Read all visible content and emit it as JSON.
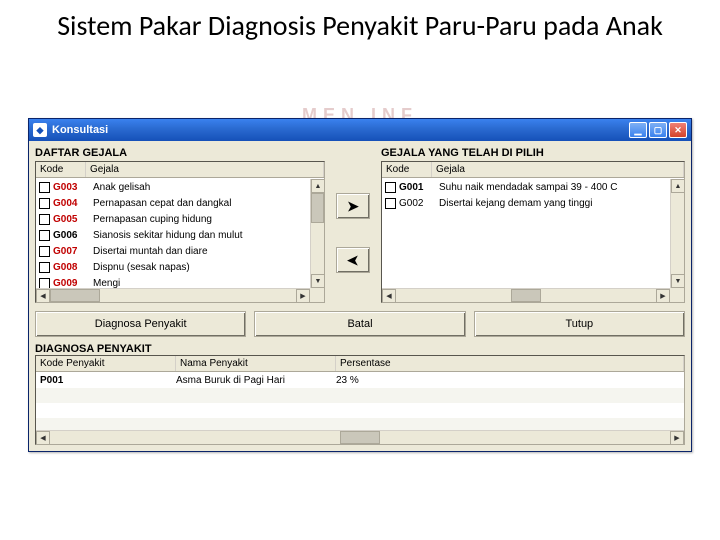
{
  "slide": {
    "title": "Sistem Pakar Diagnosis Penyakit Paru-Paru pada Anak"
  },
  "window": {
    "title": "Konsultasi",
    "titlebar_gradient": [
      "#3a81ee",
      "#1550b8"
    ],
    "bg": "#ece9d8"
  },
  "left": {
    "heading": "DAFTAR GEJALA",
    "columns": {
      "kode": "Kode",
      "gejala": "Gejala"
    },
    "rows": [
      {
        "code": "G003",
        "desc": "Anak gelisah",
        "code_color": "#c00000"
      },
      {
        "code": "G004",
        "desc": "Pernapasan cepat dan dangkal",
        "code_color": "#c00000"
      },
      {
        "code": "G005",
        "desc": "Pernapasan cuping hidung",
        "code_color": "#c00000"
      },
      {
        "code": "G006",
        "desc": "Sianosis sekitar hidung dan mulut",
        "code_color": "#000000"
      },
      {
        "code": "G007",
        "desc": "Disertai muntah dan diare",
        "code_color": "#c00000"
      },
      {
        "code": "G008",
        "desc": "Dispnu (sesak napas)",
        "code_color": "#c00000"
      },
      {
        "code": "G009",
        "desc": "Mengi",
        "code_color": "#c00000"
      }
    ]
  },
  "right": {
    "heading": "GEJALA YANG TELAH DI PILIH",
    "columns": {
      "kode": "Kode",
      "gejala": "Gejala"
    },
    "rows": [
      {
        "code": "G001",
        "desc": "Suhu naik mendadak sampai 39 - 400 C",
        "bold": true
      },
      {
        "code": "G002",
        "desc": "Disertai kejang demam yang tinggi",
        "bold": false
      }
    ]
  },
  "arrows": {
    "add": "➤",
    "remove": "➤"
  },
  "actions": {
    "diagnose": "Diagnosa Penyakit",
    "cancel": "Batal",
    "close": "Tutup"
  },
  "diagnosis": {
    "heading": "DIAGNOSA PENYAKIT",
    "columns": {
      "kode": "Kode Penyakit",
      "nama": "Nama Penyakit",
      "persen": "Persentase"
    },
    "rows": [
      {
        "kode": "P001",
        "nama": "Asma Buruk di Pagi Hari",
        "persen": "23 %"
      }
    ]
  },
  "colors": {
    "titlebar_text": "#ffffff",
    "panel_bg": "#ece9d8",
    "border": "#aca899",
    "code_red": "#c00000"
  }
}
